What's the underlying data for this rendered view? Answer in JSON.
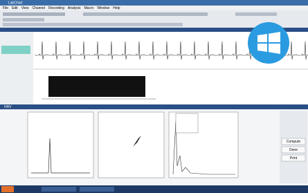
{
  "window": {
    "title": "LabChart"
  },
  "menu": [
    "File",
    "Edit",
    "View",
    "Channel",
    "Recording",
    "Analysis",
    "Macro",
    "Window",
    "Help"
  ],
  "lower_window": {
    "title": "HRV"
  },
  "right_panel": {
    "buttons": [
      "Compute",
      "Done",
      "Print"
    ]
  }
}
